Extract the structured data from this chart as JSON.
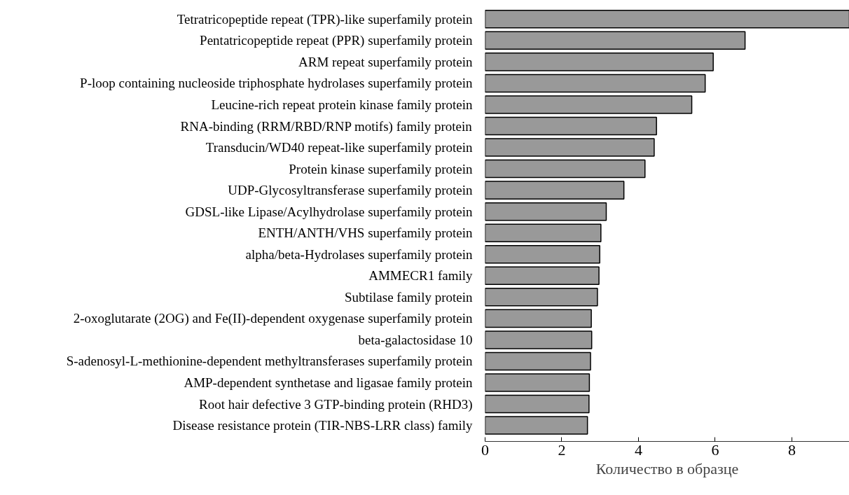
{
  "chart_data": {
    "type": "bar",
    "orientation": "horizontal",
    "xlabel": "Количество в образце",
    "categories": [
      "Tetratricopeptide repeat (TPR)-like superfamily protein",
      "Pentatricopeptide repeat (PPR) superfamily protein",
      "ARM repeat superfamily protein",
      "P-loop containing nucleoside triphosphate hydrolases superfamily protein",
      "Leucine-rich repeat protein kinase family protein",
      "RNA-binding (RRM/RBD/RNP motifs) family protein",
      "Transducin/WD40 repeat-like superfamily protein",
      "Protein kinase superfamily protein",
      "UDP-Glycosyltransferase superfamily protein",
      "GDSL-like Lipase/Acylhydrolase superfamily protein",
      "ENTH/ANTH/VHS superfamily protein",
      "alpha/beta-Hydrolases superfamily protein",
      "AMMECR1 family",
      "Subtilase family protein",
      "2-oxoglutarate (2OG) and Fe(II)-dependent oxygenase superfamily protein",
      "beta-galactosidase 10",
      "S-adenosyl-L-methionine-dependent methyltransferases superfamily protein",
      "AMP-dependent synthetase and ligasae family protein",
      "Root hair defective 3 GTP-binding protein (RHD3)",
      "Disease resistance protein (TIR-NBS-LRR class) family"
    ],
    "values": [
      9.5,
      6.78,
      5.95,
      5.74,
      5.39,
      4.47,
      4.41,
      4.17,
      3.62,
      3.16,
      3.02,
      2.99,
      2.97,
      2.93,
      2.77,
      2.78,
      2.75,
      2.72,
      2.71,
      2.67
    ],
    "color": "#999999",
    "xlim": [
      0,
      9.5
    ],
    "xticks": [
      0,
      2,
      4,
      6,
      8
    ],
    "grid": false
  }
}
